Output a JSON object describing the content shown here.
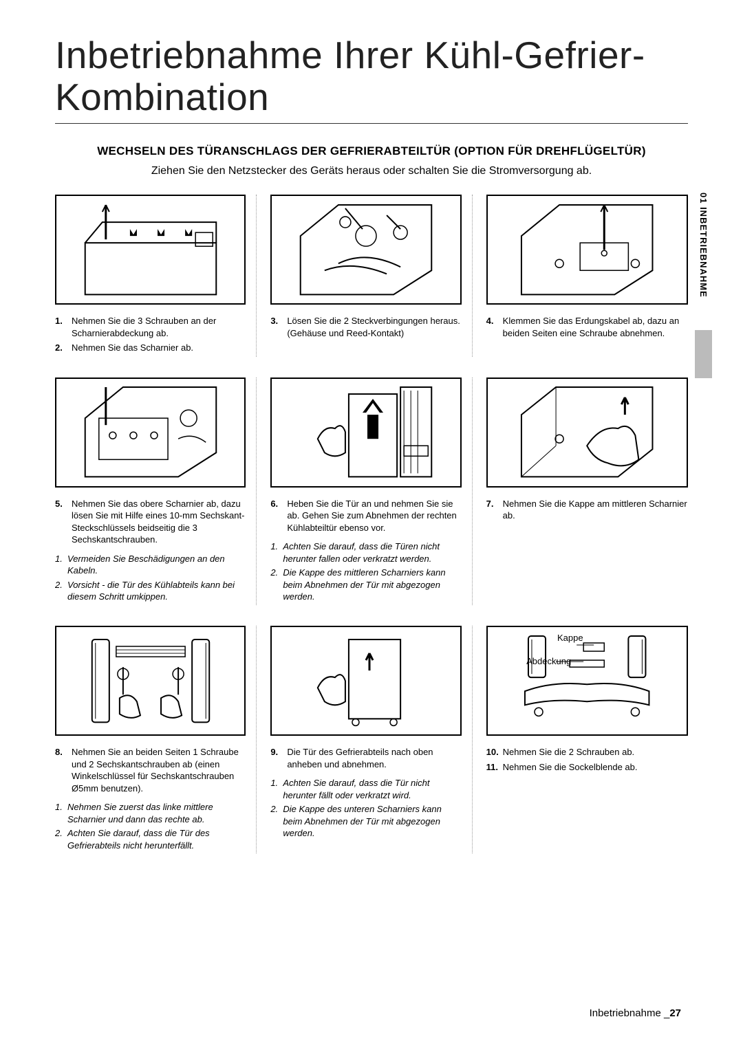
{
  "title": "Inbetriebnahme Ihrer Kühl-Gefrier-Kombination",
  "section_heading": "WECHSELN DES TÜRANSCHLAGS DER GEFRIERABTEILTÜR (OPTION FÜR DREHFLÜGELTÜR)",
  "intro": "Ziehen Sie den Netzstecker des Geräts heraus oder schalten Sie die Stromversorgung ab.",
  "side_tab": "01   INBETRIEBNAHME",
  "footer_label": "Inbetriebnahme _",
  "footer_page": "27",
  "fig_labels": {
    "kappe": "Kappe",
    "abdeckung": "Abdeckung"
  },
  "cells": [
    {
      "steps": [
        {
          "n": "1.",
          "t": "Nehmen Sie die 3 Schrauben an der Scharnierabdeckung ab."
        },
        {
          "n": "2.",
          "t": "Nehmen Sie das Scharnier ab."
        }
      ],
      "notes": []
    },
    {
      "steps": [
        {
          "n": "3.",
          "t": "Lösen Sie die 2 Steckverbingungen heraus. (Gehäuse und Reed-Kontakt)"
        }
      ],
      "notes": []
    },
    {
      "steps": [
        {
          "n": "4.",
          "t": "Klemmen Sie das Erdungskabel ab, dazu an beiden Seiten eine Schraube abnehmen."
        }
      ],
      "notes": []
    },
    {
      "steps": [
        {
          "n": "5.",
          "t": "Nehmen Sie das obere Scharnier ab, dazu lösen Sie mit Hilfe eines 10-mm Sechskant-Steckschlüssels beidseitig die 3 Sechskantschrauben."
        }
      ],
      "notes": [
        {
          "n": "1.",
          "t": "Vermeiden Sie Beschädigungen an den Kabeln."
        },
        {
          "n": "2.",
          "t": "Vorsicht - die Tür des Kühlabteils kann bei diesem Schritt umkippen."
        }
      ]
    },
    {
      "steps": [
        {
          "n": "6.",
          "t": "Heben Sie die Tür an und nehmen Sie sie ab. Gehen Sie zum Abnehmen der rechten Kühlabteiltür ebenso vor."
        }
      ],
      "notes": [
        {
          "n": "1.",
          "t": "Achten Sie darauf, dass die Türen nicht herunter fallen oder verkratzt werden."
        },
        {
          "n": "2.",
          "t": "Die Kappe des mittleren Scharniers kann beim Abnehmen der Tür mit abgezogen werden."
        }
      ]
    },
    {
      "steps": [
        {
          "n": "7.",
          "t": "Nehmen Sie die Kappe am mittleren Scharnier ab."
        }
      ],
      "notes": []
    },
    {
      "steps": [
        {
          "n": "8.",
          "t": "Nehmen Sie an beiden Seiten 1 Schraube und 2 Sechskantschrauben ab (einen Winkelschlüssel für Sechskantschrauben Ø5mm benutzen)."
        }
      ],
      "notes": [
        {
          "n": "1.",
          "t": "Nehmen Sie zuerst das linke mittlere Scharnier und dann das rechte ab."
        },
        {
          "n": "2.",
          "t": "Achten Sie darauf, dass die Tür des Gefrierabteils nicht herunterfällt."
        }
      ]
    },
    {
      "steps": [
        {
          "n": "9.",
          "t": "Die Tür des Gefrierabteils nach oben anheben und abnehmen."
        }
      ],
      "notes": [
        {
          "n": "1.",
          "t": "Achten Sie darauf, dass die Tür nicht herunter fällt oder verkratzt wird."
        },
        {
          "n": "2.",
          "t": "Die Kappe des unteren Scharniers kann beim Abnehmen der Tür mit abgezogen werden."
        }
      ]
    },
    {
      "steps": [
        {
          "n": "10.",
          "t": "Nehmen Sie die 2 Schrauben ab."
        },
        {
          "n": "11.",
          "t": "Nehmen Sie die Sockelblende ab."
        }
      ],
      "notes": []
    }
  ]
}
